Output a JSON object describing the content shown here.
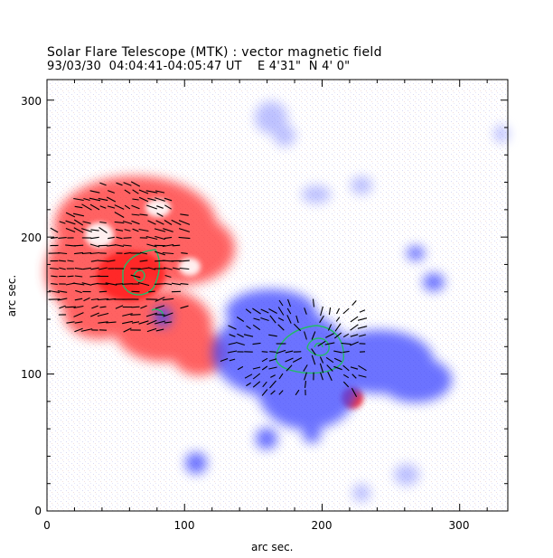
{
  "header": {
    "title": "Solar Flare Telescope (MTK) : vector magnetic field",
    "subtitle": "93/03/30  04:04:41-04:05:47 UT    E 4'31\"  N 4' 0\""
  },
  "axes": {
    "xlabel": "arc sec.",
    "ylabel": "arc sec.",
    "x_ticks": [
      "0",
      "100",
      "200",
      "300"
    ],
    "y_ticks": [
      "0",
      "100",
      "200",
      "300"
    ],
    "x_range": [
      0,
      335
    ],
    "y_range": [
      0,
      315
    ]
  },
  "colors": {
    "positive_polarity": "#ff3b3b",
    "negative_polarity": "#2f3bff",
    "contour": "#22bb66",
    "vectors": "#000000",
    "frame": "#000000"
  }
}
